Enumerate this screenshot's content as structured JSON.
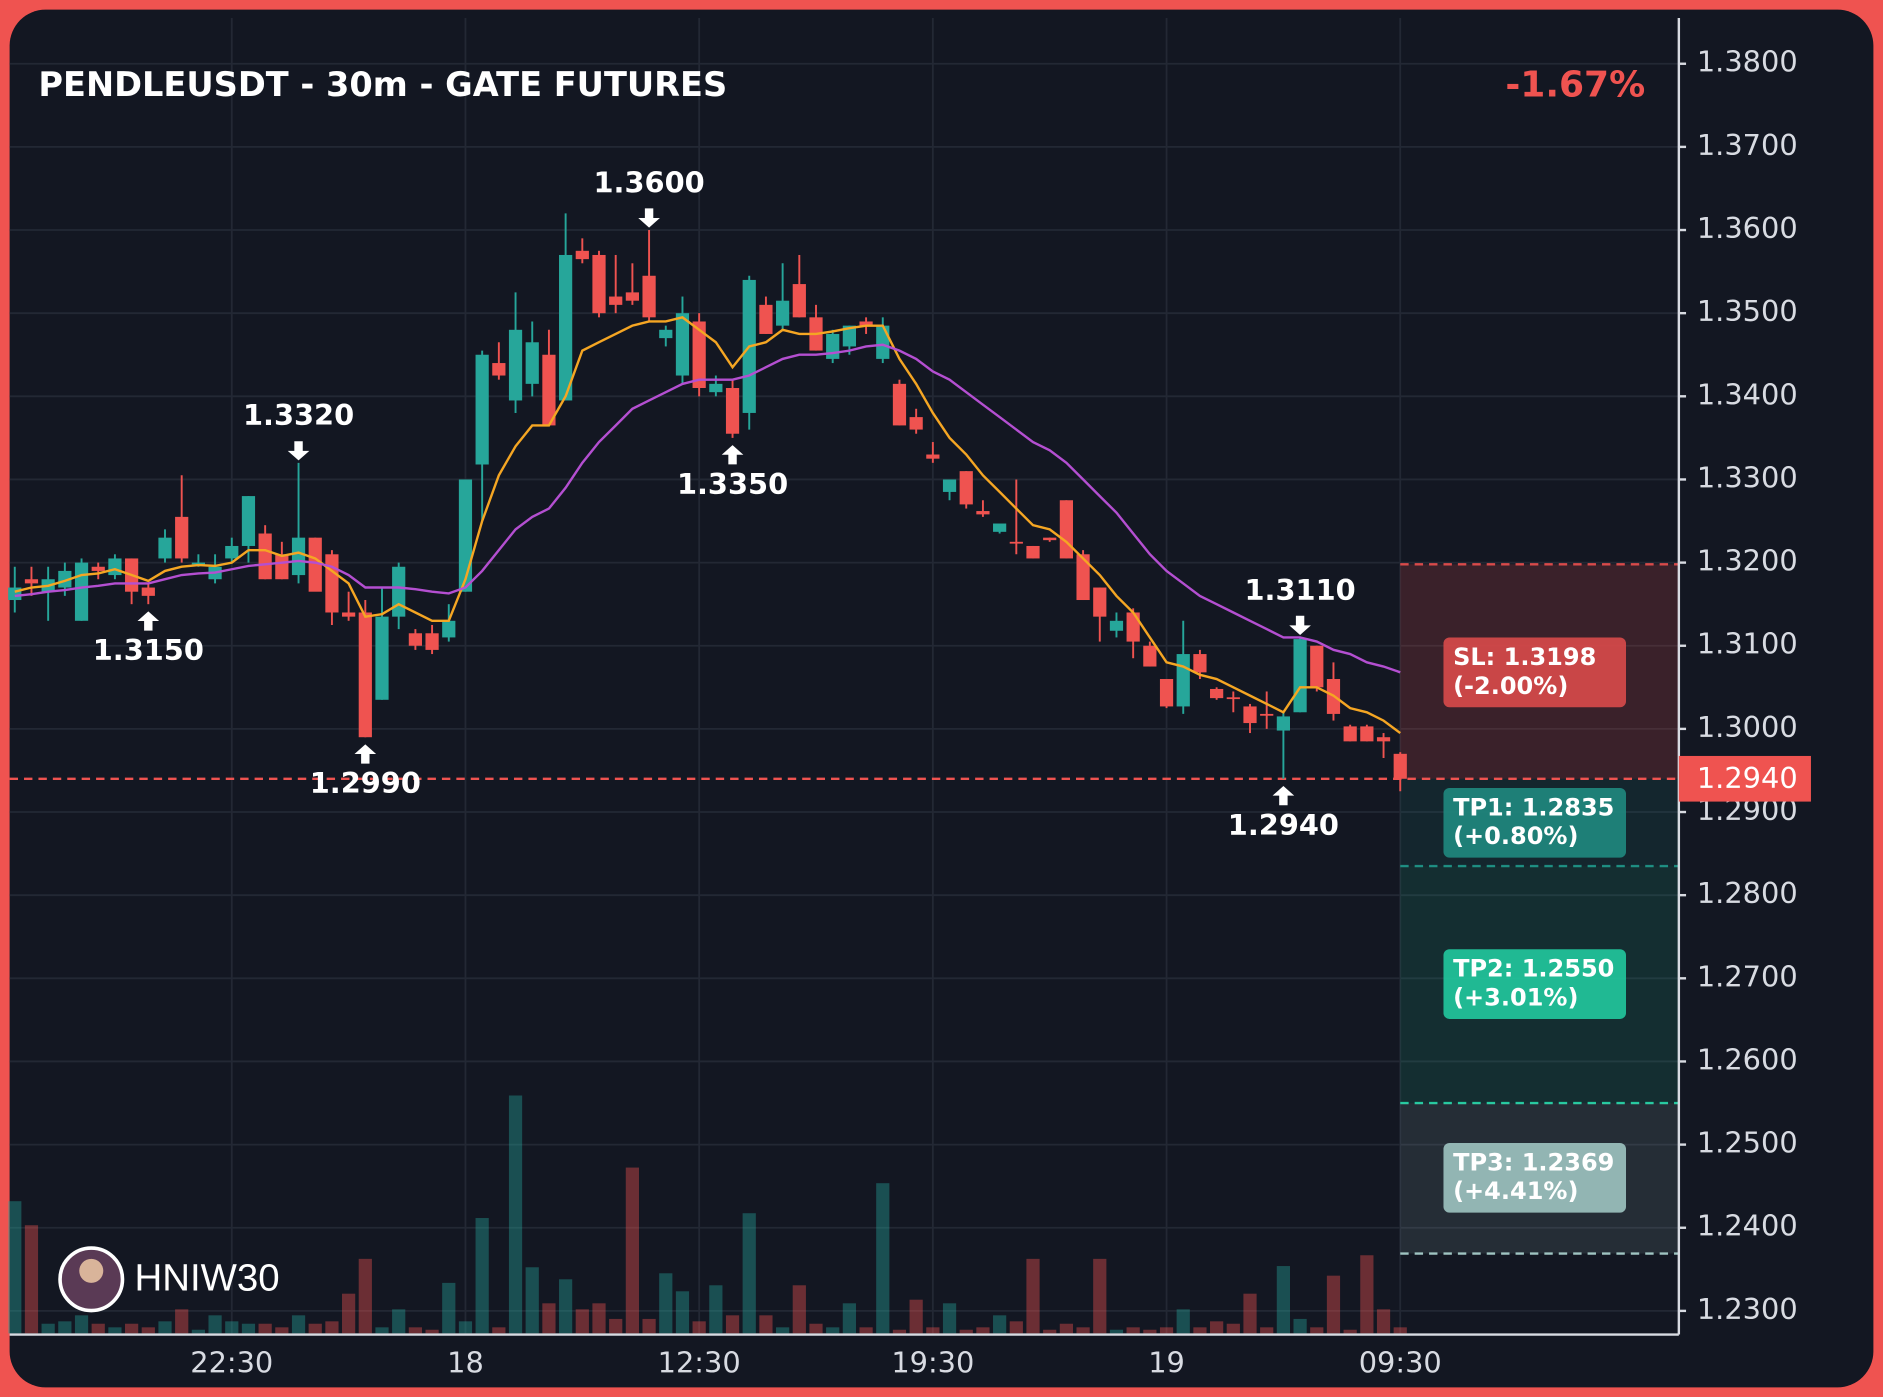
{
  "chart_data": {
    "type": "candlestick",
    "title": "PENDLEUSDT - 30m - GATE FUTURES",
    "change_label": "-1.67%",
    "watermark": "HNIW30",
    "up_color": "#26a69a",
    "down_color": "#ef5350",
    "categories": [
      null,
      null,
      null,
      null,
      null,
      null,
      null,
      null,
      null,
      null,
      null,
      null,
      null,
      "22:30",
      null,
      null,
      null,
      null,
      null,
      null,
      null,
      null,
      null,
      null,
      null,
      null,
      null,
      "18",
      null,
      null,
      null,
      null,
      null,
      null,
      null,
      null,
      null,
      null,
      null,
      null,
      null,
      "12:30",
      null,
      null,
      null,
      null,
      null,
      null,
      null,
      null,
      null,
      null,
      null,
      null,
      null,
      "19:30",
      null,
      null,
      null,
      null,
      null,
      null,
      null,
      null,
      null,
      null,
      null,
      null,
      null,
      "19",
      null,
      null,
      null,
      null,
      null,
      null,
      null,
      null,
      null,
      null,
      null,
      null,
      null,
      "09:30"
    ],
    "open": [
      1.3155,
      1.318,
      1.3165,
      1.317,
      1.313,
      1.3195,
      1.3185,
      1.3205,
      1.317,
      1.3205,
      1.3255,
      1.32,
      1.318,
      1.3205,
      1.322,
      1.3235,
      1.321,
      1.3185,
      1.323,
      1.321,
      1.314,
      1.314,
      1.3035,
      1.3135,
      1.3115,
      1.3115,
      1.311,
      1.3165,
      1.3318,
      1.344,
      1.3395,
      1.3415,
      1.345,
      1.3395,
      1.3575,
      1.357,
      1.352,
      1.3525,
      1.3545,
      1.347,
      1.3425,
      1.349,
      1.3405,
      1.341,
      1.338,
      1.351,
      1.3485,
      1.3535,
      1.3495,
      1.3445,
      1.346,
      1.349,
      1.3445,
      1.3415,
      1.3375,
      1.333,
      1.3285,
      1.331,
      1.3262,
      1.3237,
      1.3225,
      1.322,
      1.323,
      1.3275,
      1.321,
      1.317,
      1.3118,
      1.314,
      1.31,
      1.306,
      1.3027,
      1.309,
      1.3048,
      1.3038,
      1.3027,
      1.3018,
      1.2998,
      1.302,
      1.31,
      1.306,
      1.3003,
      1.3003,
      1.299,
      1.297
    ],
    "high": [
      1.3195,
      1.3195,
      1.3195,
      1.32,
      1.3205,
      1.32,
      1.321,
      1.3205,
      1.3175,
      1.324,
      1.3305,
      1.321,
      1.321,
      1.323,
      1.328,
      1.3245,
      1.3225,
      1.332,
      1.323,
      1.3215,
      1.3165,
      1.3155,
      1.317,
      1.32,
      1.312,
      1.3125,
      1.315,
      1.33,
      1.3455,
      1.3465,
      1.3525,
      1.349,
      1.348,
      1.362,
      1.359,
      1.3575,
      1.357,
      1.356,
      1.36,
      1.3485,
      1.352,
      1.35,
      1.3425,
      1.342,
      1.3545,
      1.352,
      1.356,
      1.357,
      1.351,
      1.348,
      1.3485,
      1.3495,
      1.3495,
      1.342,
      1.3385,
      1.3345,
      1.3295,
      1.331,
      1.3275,
      1.3245,
      1.33,
      1.322,
      1.323,
      1.3275,
      1.3215,
      1.317,
      1.314,
      1.3145,
      1.3105,
      1.306,
      1.313,
      1.3095,
      1.305,
      1.3045,
      1.303,
      1.3045,
      1.302,
      1.311,
      1.31,
      1.308,
      1.3005,
      1.3005,
      1.2995,
      1.2972
    ],
    "low": [
      1.314,
      1.316,
      1.313,
      1.316,
      1.313,
      1.318,
      1.318,
      1.315,
      1.315,
      1.32,
      1.32,
      1.3195,
      1.3175,
      1.32,
      1.32,
      1.318,
      1.318,
      1.3175,
      1.318,
      1.3125,
      1.313,
      1.299,
      1.3035,
      1.312,
      1.3095,
      1.309,
      1.3105,
      1.3165,
      1.325,
      1.342,
      1.338,
      1.34,
      1.3365,
      1.3395,
      1.356,
      1.3495,
      1.35,
      1.351,
      1.349,
      1.346,
      1.3415,
      1.34,
      1.34,
      1.335,
      1.336,
      1.3475,
      1.348,
      1.3495,
      1.3455,
      1.344,
      1.345,
      1.3475,
      1.344,
      1.3365,
      1.3355,
      1.332,
      1.3275,
      1.3265,
      1.3255,
      1.3235,
      1.321,
      1.3205,
      1.3225,
      1.3205,
      1.3155,
      1.3105,
      1.311,
      1.3085,
      1.3075,
      1.3025,
      1.3018,
      1.306,
      1.3035,
      1.302,
      1.2995,
      1.3,
      1.294,
      1.302,
      1.3045,
      1.301,
      1.2985,
      1.2985,
      1.2965,
      1.2925
    ],
    "close": [
      1.317,
      1.3175,
      1.318,
      1.319,
      1.32,
      1.319,
      1.3205,
      1.3165,
      1.316,
      1.323,
      1.3205,
      1.32,
      1.3195,
      1.322,
      1.328,
      1.318,
      1.318,
      1.323,
      1.3165,
      1.314,
      1.3135,
      1.299,
      1.3135,
      1.3195,
      1.31,
      1.3095,
      1.313,
      1.33,
      1.345,
      1.3425,
      1.348,
      1.3465,
      1.3365,
      1.357,
      1.3565,
      1.35,
      1.351,
      1.3515,
      1.3495,
      1.348,
      1.35,
      1.341,
      1.3415,
      1.3355,
      1.354,
      1.3475,
      1.3515,
      1.3495,
      1.3455,
      1.3475,
      1.3485,
      1.3485,
      1.3485,
      1.3365,
      1.336,
      1.3325,
      1.33,
      1.327,
      1.3258,
      1.3247,
      1.3223,
      1.3205,
      1.3227,
      1.3205,
      1.3155,
      1.3135,
      1.313,
      1.3105,
      1.3075,
      1.3027,
      1.309,
      1.3068,
      1.3037,
      1.3036,
      1.3007,
      1.3016,
      1.3015,
      1.3108,
      1.305,
      1.3018,
      1.2985,
      1.2985,
      1.2985,
      1.294
    ],
    "volume": [
      110,
      90,
      8,
      10,
      15,
      8,
      5,
      8,
      5,
      10,
      20,
      3,
      15,
      10,
      8,
      8,
      5,
      15,
      8,
      10,
      33,
      62,
      5,
      20,
      5,
      3,
      42,
      10,
      96,
      5,
      198,
      55,
      25,
      45,
      20,
      25,
      12,
      138,
      12,
      50,
      35,
      10,
      40,
      15,
      100,
      15,
      5,
      40,
      8,
      5,
      25,
      5,
      125,
      3,
      28,
      5,
      25,
      3,
      5,
      15,
      10,
      62,
      3,
      8,
      5,
      62,
      3,
      5,
      3,
      5,
      20,
      5,
      10,
      8,
      33,
      5,
      56,
      12,
      5,
      48,
      3,
      65,
      20,
      5
    ],
    "moving_averages": [
      {
        "color": "#f5a623",
        "values": [
          1.3165,
          1.317,
          1.3172,
          1.3178,
          1.3185,
          1.3187,
          1.3192,
          1.3185,
          1.3178,
          1.319,
          1.3195,
          1.3197,
          1.3196,
          1.32,
          1.3215,
          1.3215,
          1.3208,
          1.3212,
          1.3205,
          1.319,
          1.3175,
          1.3135,
          1.3138,
          1.315,
          1.314,
          1.313,
          1.313,
          1.318,
          1.325,
          1.3305,
          1.334,
          1.3365,
          1.3365,
          1.34,
          1.3455,
          1.3465,
          1.3475,
          1.3485,
          1.349,
          1.349,
          1.3495,
          1.348,
          1.3465,
          1.3435,
          1.346,
          1.3465,
          1.348,
          1.3475,
          1.3475,
          1.3478,
          1.3482,
          1.3485,
          1.3485,
          1.3445,
          1.3415,
          1.338,
          1.335,
          1.333,
          1.3305,
          1.3285,
          1.3265,
          1.3245,
          1.324,
          1.3225,
          1.3205,
          1.3185,
          1.316,
          1.314,
          1.311,
          1.308,
          1.3075,
          1.3065,
          1.306,
          1.305,
          1.304,
          1.303,
          1.302,
          1.305,
          1.305,
          1.304,
          1.3025,
          1.302,
          1.301,
          1.2995
        ]
      },
      {
        "color": "#b44fd1",
        "values": [
          1.316,
          1.3162,
          1.3165,
          1.3167,
          1.317,
          1.3172,
          1.3175,
          1.3175,
          1.3175,
          1.318,
          1.3185,
          1.3187,
          1.3188,
          1.3192,
          1.3196,
          1.3198,
          1.32,
          1.3202,
          1.32,
          1.3195,
          1.3185,
          1.317,
          1.317,
          1.317,
          1.3168,
          1.3165,
          1.3163,
          1.317,
          1.319,
          1.3215,
          1.324,
          1.3255,
          1.3265,
          1.329,
          1.332,
          1.3345,
          1.3365,
          1.3385,
          1.3395,
          1.3405,
          1.3415,
          1.342,
          1.342,
          1.342,
          1.3425,
          1.3435,
          1.3445,
          1.345,
          1.345,
          1.3452,
          1.3455,
          1.346,
          1.3462,
          1.3455,
          1.3445,
          1.343,
          1.342,
          1.3405,
          1.339,
          1.3375,
          1.336,
          1.3345,
          1.3335,
          1.332,
          1.33,
          1.328,
          1.326,
          1.3235,
          1.321,
          1.319,
          1.3175,
          1.316,
          1.315,
          1.314,
          1.313,
          1.312,
          1.311,
          1.311,
          1.3105,
          1.3095,
          1.309,
          1.308,
          1.3075,
          1.3068
        ]
      }
    ],
    "annotations": [
      {
        "index": 8,
        "value": 1.315,
        "label": "1.3150",
        "position": "below"
      },
      {
        "index": 17,
        "value": 1.332,
        "label": "1.3320",
        "position": "above"
      },
      {
        "index": 21,
        "value": 1.299,
        "label": "1.2990",
        "position": "below"
      },
      {
        "index": 38,
        "value": 1.36,
        "label": "1.3600",
        "position": "above"
      },
      {
        "index": 43,
        "value": 1.335,
        "label": "1.3350",
        "position": "below"
      },
      {
        "index": 77,
        "value": 1.311,
        "label": "1.3110",
        "position": "above"
      },
      {
        "index": 76,
        "value": 1.294,
        "label": "1.2940",
        "position": "below"
      }
    ],
    "entry": {
      "value": 1.294,
      "label": "1.2940",
      "color": "#ef5350"
    },
    "levels": [
      {
        "value": 1.3198,
        "label": "SL: 1.3198",
        "change": "(-2.00%)",
        "color": "#d94a4a"
      },
      {
        "value": 1.2835,
        "label": "TP1: 1.2835",
        "change": "(+0.80%)",
        "color": "#1f8a80"
      },
      {
        "value": 1.255,
        "label": "TP2: 1.2550",
        "change": "(+3.01%)",
        "color": "#21c99e"
      },
      {
        "value": 1.2369,
        "label": "TP3: 1.2369",
        "change": "(+4.41%)",
        "color": "#9fc4c1"
      }
    ],
    "ylim": [
      1.2273,
      1.3855
    ],
    "yticks": [
      {
        "value": 1.23,
        "label": "1.2300"
      },
      {
        "value": 1.24,
        "label": "1.2400"
      },
      {
        "value": 1.25,
        "label": "1.2500"
      },
      {
        "value": 1.26,
        "label": "1.2600"
      },
      {
        "value": 1.27,
        "label": "1.2700"
      },
      {
        "value": 1.28,
        "label": "1.2800"
      },
      {
        "value": 1.29,
        "label": "1.2900"
      },
      {
        "value": 1.3,
        "label": "1.3000"
      },
      {
        "value": 1.31,
        "label": "1.3100"
      },
      {
        "value": 1.32,
        "label": "1.3200"
      },
      {
        "value": 1.33,
        "label": "1.3300"
      },
      {
        "value": 1.34,
        "label": "1.3400"
      },
      {
        "value": 1.35,
        "label": "1.3500"
      },
      {
        "value": 1.36,
        "label": "1.3600"
      },
      {
        "value": 1.37,
        "label": "1.3700"
      },
      {
        "value": 1.38,
        "label": "1.3800"
      }
    ],
    "grid": true
  }
}
